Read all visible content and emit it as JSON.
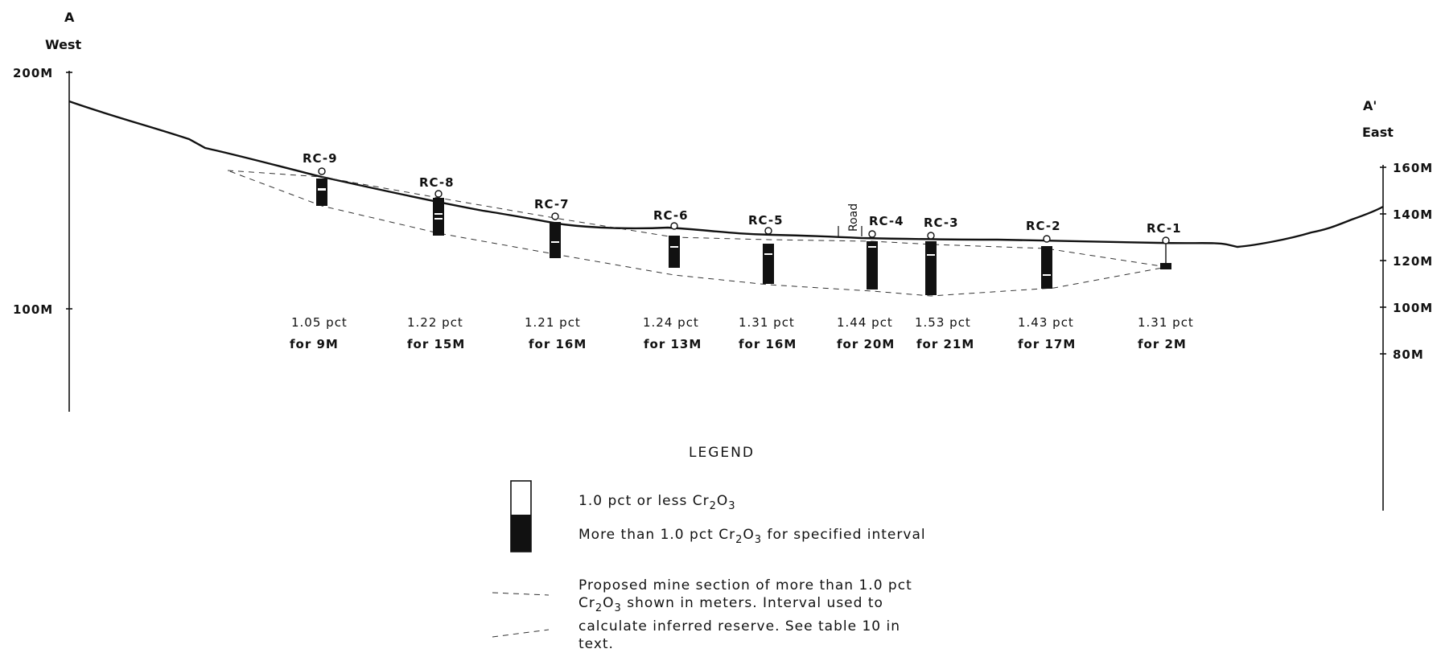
{
  "section": {
    "west_letter": "A",
    "west_label": "West",
    "east_letter": "A'",
    "east_label": "East",
    "left_axis_ticks": [
      "200M",
      "100M"
    ],
    "right_axis_ticks": [
      "160M",
      "140M",
      "120M",
      "100M",
      "80M"
    ],
    "road_label": "Road"
  },
  "drill_holes": [
    {
      "id": "RC-9",
      "grade": "1.05 pct",
      "interval": "for 9M"
    },
    {
      "id": "RC-8",
      "grade": "1.22 pct",
      "interval": "for 15M"
    },
    {
      "id": "RC-7",
      "grade": "1.21 pct",
      "interval": "for 16M"
    },
    {
      "id": "RC-6",
      "grade": "1.24 pct",
      "interval": "for 13M"
    },
    {
      "id": "RC-5",
      "grade": "1.31 pct",
      "interval": "for 16M"
    },
    {
      "id": "RC-4",
      "grade": "1.44 pct",
      "interval": "for 20M"
    },
    {
      "id": "RC-3",
      "grade": "1.53 pct",
      "interval": "for 21M"
    },
    {
      "id": "RC-2",
      "grade": "1.43 pct",
      "interval": "for 17M"
    },
    {
      "id": "RC-1",
      "grade": "1.31 pct",
      "interval": "for 2M"
    }
  ],
  "legend": {
    "title": "LEGEND",
    "low_grade_prefix": "1.0 pct or less Cr",
    "high_grade_prefix": "More than 1.0 pct Cr",
    "high_grade_suffix": "for specified interval",
    "mine_line1": "Proposed mine section of more than 1.0 pct",
    "mine_line2_prefix": "Cr",
    "mine_line2_suffix": "shown in meters. Interval used to",
    "mine_line3": "calculate inferred reserve. See table 10 in",
    "mine_line4": "text.",
    "sub2": "2",
    "sub3": "3",
    "O": "O"
  }
}
